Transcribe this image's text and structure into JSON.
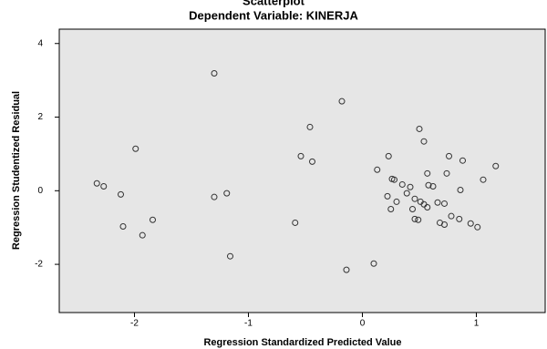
{
  "chart_data": {
    "type": "scatter",
    "title": "Scatterplot",
    "subtitle": "Dependent Variable: KINERJA",
    "x_label": "Regression Standardized Predicted Value",
    "y_label": "Regression Studentized Residual",
    "x": [
      -2.33,
      -2.27,
      -2.12,
      -2.1,
      -1.99,
      -1.93,
      -1.84,
      -1.3,
      -1.3,
      -1.19,
      -1.16,
      -0.59,
      -0.54,
      -0.46,
      -0.44,
      -0.18,
      -0.14,
      0.1,
      0.13,
      0.22,
      0.25,
      0.26,
      0.28,
      0.3,
      0.23,
      0.35,
      0.39,
      0.42,
      0.44,
      0.46,
      0.46,
      0.49,
      0.51,
      0.54,
      0.57,
      0.5,
      0.54,
      0.57,
      0.58,
      0.62,
      0.66,
      0.68,
      0.72,
      0.74,
      0.76,
      0.72,
      0.78,
      0.85,
      0.86,
      0.88,
      0.95,
      1.01,
      1.06,
      1.17
    ],
    "y": [
      0.2,
      0.12,
      -0.1,
      -0.97,
      1.14,
      -1.21,
      -0.79,
      3.19,
      -0.17,
      -0.07,
      -1.78,
      -0.87,
      0.94,
      1.73,
      0.79,
      2.43,
      -2.15,
      -1.98,
      0.57,
      -0.15,
      -0.5,
      0.32,
      0.3,
      -0.3,
      0.94,
      0.17,
      -0.07,
      0.1,
      -0.5,
      -0.22,
      -0.77,
      -0.79,
      -0.3,
      -0.37,
      -0.45,
      1.68,
      1.34,
      0.47,
      0.15,
      0.12,
      -0.32,
      -0.87,
      -0.92,
      0.47,
      0.94,
      -0.35,
      -0.69,
      -0.77,
      0.02,
      0.82,
      -0.89,
      -0.99,
      0.3,
      0.67
    ],
    "color": "#333333",
    "background": "#e6e6e6",
    "xlim": [
      -2.66,
      1.604
    ],
    "ylim": [
      -3.31,
      4.39
    ],
    "xticks": [
      -2,
      -1,
      0,
      1
    ],
    "yticks": [
      -2,
      0,
      2,
      4
    ]
  }
}
